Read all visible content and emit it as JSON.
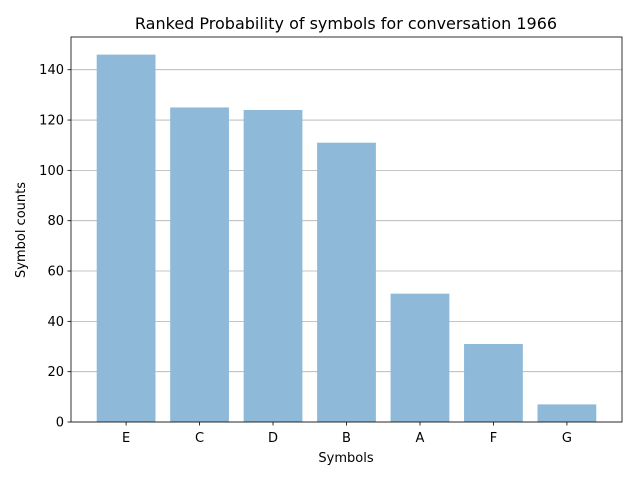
{
  "chart_data": {
    "type": "bar",
    "title": "Ranked Probability of symbols for conversation 1966",
    "xlabel": "Symbols",
    "ylabel": "Symbol counts",
    "categories": [
      "E",
      "C",
      "D",
      "B",
      "A",
      "F",
      "G"
    ],
    "values": [
      146,
      125,
      124,
      111,
      51,
      31,
      7
    ],
    "ylim": [
      0,
      153
    ],
    "yticks": [
      0,
      20,
      40,
      60,
      80,
      100,
      120,
      140
    ],
    "grid": "horizontal",
    "bar_color": "#8eb9d9"
  }
}
